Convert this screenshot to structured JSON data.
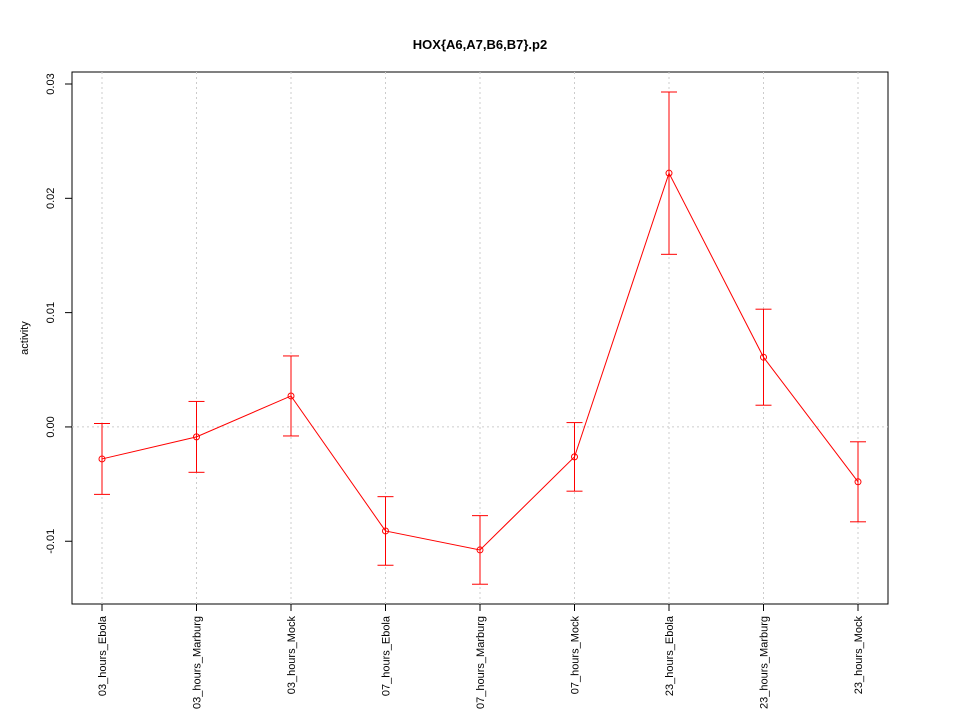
{
  "chart_data": {
    "type": "line",
    "title": "HOX{A6,A7,B6,B7}.p2",
    "ylabel": "activity",
    "categories": [
      "03_hours_Ebola",
      "03_hours_Marburg",
      "03_hours_Mock",
      "07_hours_Ebola",
      "07_hours_Marburg",
      "07_hours_Mock",
      "23_hours_Ebola",
      "23_hours_Marburg",
      "23_hours_Mock"
    ],
    "series": [
      {
        "name": "activity",
        "color": "#ff0000",
        "values": [
          -0.0028,
          -0.00087,
          0.00271,
          -0.0091,
          -0.01076,
          -0.00262,
          0.0222,
          0.0061,
          -0.0048
        ],
        "errors": [
          0.0031,
          0.0031,
          0.0035,
          0.003,
          0.003,
          0.003,
          0.0071,
          0.0042,
          0.0035
        ]
      }
    ],
    "ylim": [
      -0.01549,
      0.03105
    ],
    "yticks": [
      -0.01,
      {
        "value": 0,
        "label": "0.00"
      },
      0.01,
      0.02,
      0.03
    ],
    "reference_line": 0,
    "grid": true
  }
}
